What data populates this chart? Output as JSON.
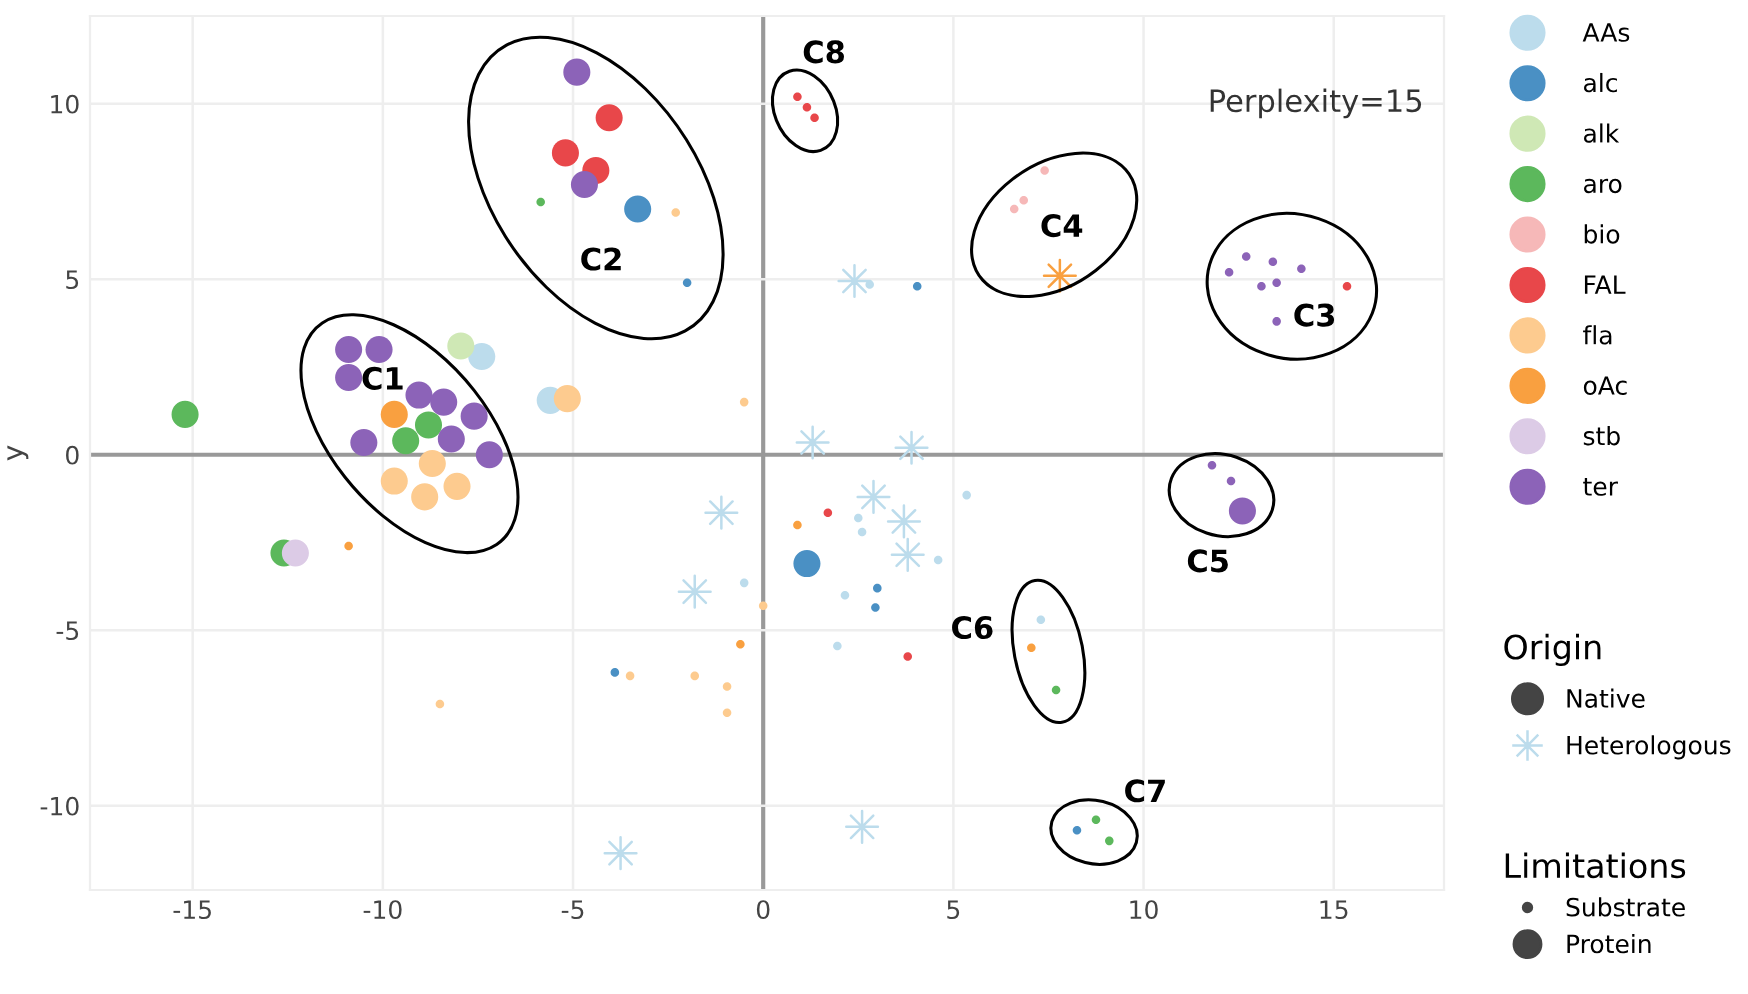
{
  "chart_data": {
    "type": "scatter",
    "ylabel": "y",
    "xlim": [
      -17.7,
      17.9
    ],
    "ylim": [
      -12.4,
      12.5
    ],
    "xticks": [
      -15,
      -10,
      -5,
      0,
      5,
      10,
      15
    ],
    "yticks": [
      -10,
      -5,
      0,
      5,
      10
    ],
    "grid": true,
    "legend": "right",
    "marker": "circle",
    "annotations": [
      "Perplexity=15",
      "Origin",
      "Native",
      "Heterologous",
      "Limitations",
      "Substrate",
      "Protein",
      "C1",
      "C2",
      "C3",
      "C4",
      "C5",
      "C6",
      "C7",
      "C8"
    ],
    "series": [
      {
        "name": "AAs",
        "color": "#bcdcec",
        "x": [
          -7.4,
          -5.6,
          2.8,
          2.5,
          2.6,
          4.6,
          5.35,
          -0.5,
          2.15,
          1.95,
          7.3
        ],
        "values": [
          2.8,
          1.55,
          4.85,
          -1.8,
          -2.2,
          -3.0,
          -1.15,
          -3.65,
          -4.0,
          -5.45,
          -4.7
        ],
        "sizes": [
          1,
          1,
          0.1,
          0.1,
          0.1,
          0.1,
          0.1,
          0.1,
          0.1,
          0.1,
          0.1
        ]
      },
      {
        "name": "alc",
        "color": "#4a90c4",
        "x": [
          -3.3,
          1.15,
          -2.0,
          4.05,
          3.0,
          2.95,
          -3.9,
          8.25
        ],
        "values": [
          7.0,
          -3.1,
          4.9,
          4.8,
          -3.8,
          -4.35,
          -6.2,
          -10.7
        ],
        "sizes": [
          1,
          1,
          0.1,
          0.1,
          0.1,
          0.1,
          0.1,
          0.1
        ]
      },
      {
        "name": "alk",
        "color": "#cfe8b5",
        "x": [
          -7.95
        ],
        "values": [
          3.1
        ],
        "sizes": [
          1
        ]
      },
      {
        "name": "aro",
        "color": "#5cb85c",
        "x": [
          -8.8,
          -9.4,
          -15.2,
          -12.6,
          -5.85,
          7.7,
          8.75,
          9.1
        ],
        "values": [
          0.85,
          0.4,
          1.15,
          -2.8,
          7.2,
          -6.7,
          -10.4,
          -11.0
        ],
        "sizes": [
          1,
          1,
          1,
          1,
          0.1,
          0.1,
          0.1,
          0.1
        ]
      },
      {
        "name": "bio",
        "color": "#f6b8b8",
        "x": [
          7.4,
          6.85,
          6.6
        ],
        "values": [
          8.1,
          7.25,
          7.0
        ],
        "sizes": [
          0.1,
          0.1,
          0.1
        ]
      },
      {
        "name": "FAL",
        "color": "#e8474a",
        "x": [
          -4.05,
          -5.2,
          -4.4,
          0.9,
          1.15,
          1.35,
          15.35,
          1.7,
          3.8
        ],
        "values": [
          9.6,
          8.6,
          8.1,
          10.2,
          9.9,
          9.6,
          4.8,
          -1.65,
          -5.75
        ],
        "sizes": [
          1,
          1,
          1,
          0.1,
          0.1,
          0.1,
          0.1,
          0.1,
          0.1
        ]
      },
      {
        "name": "fla",
        "color": "#fdcb8f",
        "x": [
          -5.15,
          -8.7,
          -9.7,
          -8.9,
          -8.05,
          -2.3,
          -0.5,
          -8.5,
          0.0,
          -3.5,
          -1.8,
          -0.95,
          -0.95
        ],
        "values": [
          1.6,
          -0.25,
          -0.75,
          -1.2,
          -0.9,
          6.9,
          1.5,
          -7.1,
          -4.3,
          -6.3,
          -6.3,
          -6.6,
          -7.35
        ],
        "sizes": [
          1,
          1,
          1,
          1,
          1,
          0.1,
          0.1,
          0.1,
          0.1,
          0.1,
          0.1,
          0.1,
          0.1
        ]
      },
      {
        "name": "oAc",
        "color": "#f9a040",
        "x": [
          -9.7,
          -10.9,
          0.9,
          -0.6,
          7.05
        ],
        "values": [
          1.15,
          -2.6,
          -2.0,
          -5.4,
          -5.5
        ],
        "sizes": [
          1,
          0.1,
          0.1,
          0.1,
          0.1
        ]
      },
      {
        "name": "stb",
        "color": "#dccbe6",
        "x": [
          -12.3
        ],
        "values": [
          -2.8
        ],
        "sizes": [
          1
        ]
      },
      {
        "name": "ter",
        "color": "#8c63b8",
        "x": [
          -4.9,
          -4.7,
          -10.9,
          -10.1,
          -10.9,
          -9.05,
          -8.4,
          -7.6,
          -8.2,
          -10.5,
          -7.2,
          12.6,
          12.7,
          12.25,
          13.4,
          14.15,
          13.1,
          13.5,
          13.5,
          11.8,
          12.3
        ],
        "values": [
          10.9,
          7.7,
          3.0,
          3.0,
          2.2,
          1.7,
          1.5,
          1.1,
          0.45,
          0.35,
          0.0,
          -1.6,
          5.65,
          5.2,
          5.5,
          5.3,
          4.8,
          4.9,
          3.8,
          -0.3,
          -0.75
        ],
        "sizes": [
          1,
          1,
          1,
          1,
          1,
          1,
          1,
          1,
          1,
          1,
          1,
          1,
          0.1,
          0.1,
          0.1,
          0.1,
          0.1,
          0.1,
          0.1,
          0.1,
          0.1
        ]
      },
      {
        "color": "#bcdcec",
        "marker": "star",
        "x": [
          2.4,
          1.3,
          3.9,
          -1.1,
          2.9,
          3.7,
          3.8,
          -1.8,
          2.6,
          -3.75
        ],
        "values": [
          4.95,
          0.35,
          0.2,
          -1.65,
          -1.2,
          -1.9,
          -2.85,
          -3.9,
          -10.6,
          -11.35
        ]
      },
      {
        "color": "#f9a040",
        "marker": "star",
        "x": [
          7.8
        ],
        "values": [
          5.1
        ]
      }
    ]
  }
}
